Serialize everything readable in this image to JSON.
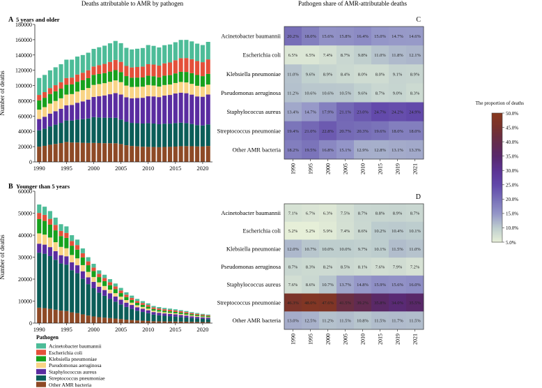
{
  "figure": {
    "left_title": "Deaths attributable to AMR by pathogen",
    "right_title": "Pathogen share of AMR-attributable deaths"
  },
  "legend": {
    "title": "Pathogen",
    "items": [
      {
        "label": "Acinetobacter baumannii",
        "color": "#4dbc98"
      },
      {
        "label": "Escherichia coli",
        "color": "#e4503a"
      },
      {
        "label": "Klebsiella pneumoniae",
        "color": "#16a11d"
      },
      {
        "label": "Pseudomonas aeruginosa",
        "color": "#f9d485"
      },
      {
        "label": "Staphylococcus aureus",
        "color": "#5a2ca0"
      },
      {
        "label": "Streptococcus pneumoniae",
        "color": "#0b5d58"
      },
      {
        "label": "Other AMR bacteria",
        "color": "#8e4a26"
      }
    ]
  },
  "colorbar": {
    "title": "The proportion of deaths",
    "ticks": [
      "5.0%",
      "10.0%",
      "15.0%",
      "20.0%",
      "25.0%",
      "30.0%",
      "35.0%",
      "40.0%",
      "45.0%",
      "50.0%"
    ],
    "min": 5,
    "max": 50
  },
  "chart_data": [
    {
      "id": "A",
      "panel_label": "A",
      "panel_title": "5 years and older",
      "type": "bar",
      "stacked": true,
      "ylabel": "Number of deaths",
      "ylim": [
        0,
        180000
      ],
      "yticks": [
        "0",
        "20000",
        "40000",
        "60000",
        "80000",
        "100000",
        "120000",
        "140000",
        "160000",
        "180000"
      ],
      "xticks": [
        "1990",
        "1995",
        "2000",
        "2005",
        "2010",
        "2015",
        "2020"
      ],
      "categories": [
        1990,
        1991,
        1992,
        1993,
        1994,
        1995,
        1996,
        1997,
        1998,
        1999,
        2000,
        2001,
        2002,
        2003,
        2004,
        2005,
        2006,
        2007,
        2008,
        2009,
        2010,
        2011,
        2012,
        2013,
        2014,
        2015,
        2016,
        2017,
        2018,
        2019,
        2020,
        2021
      ],
      "totals": [
        110000,
        114000,
        120000,
        124000,
        128000,
        134000,
        134000,
        138000,
        140000,
        143000,
        148000,
        150000,
        152000,
        155000,
        158000,
        155000,
        149000,
        147000,
        148000,
        149000,
        153000,
        152000,
        150000,
        153000,
        154000,
        157000,
        160000,
        160000,
        158000,
        155000,
        153000,
        157000
      ],
      "shares_by_year": {
        "years": [
          1990,
          1995,
          2000,
          2005,
          2010,
          2015,
          2019,
          2021
        ],
        "Acinetobacter baumannii": [
          20.2,
          18.0,
          15.6,
          15.8,
          16.4,
          15.0,
          14.7,
          14.6
        ],
        "Escherichia coli": [
          6.5,
          6.5,
          7.4,
          8.7,
          9.8,
          11.0,
          11.8,
          12.1
        ],
        "Klebsiella pneumoniae": [
          11.0,
          9.6,
          8.9,
          8.4,
          8.0,
          8.0,
          9.1,
          8.9
        ],
        "Pseudomonas aeruginosa": [
          11.2,
          10.6,
          10.6,
          10.5,
          9.6,
          8.7,
          9.0,
          8.3
        ],
        "Staphylococcus aureus": [
          13.4,
          14.7,
          17.9,
          21.1,
          23.0,
          24.7,
          24.2,
          24.9
        ],
        "Streptococcus pneumoniae": [
          19.4,
          21.0,
          22.8,
          20.7,
          20.3,
          19.6,
          18.0,
          18.0
        ],
        "Other AMR bacteria": [
          18.2,
          19.5,
          16.8,
          15.1,
          12.9,
          12.8,
          13.1,
          13.3
        ]
      }
    },
    {
      "id": "B",
      "panel_label": "B",
      "panel_title": "Younger than 5 years",
      "type": "bar",
      "stacked": true,
      "ylabel": "Number of deaths",
      "ylim": [
        0,
        60000
      ],
      "yticks": [
        "0",
        "10000",
        "20000",
        "30000",
        "40000",
        "50000",
        "60000"
      ],
      "xticks": [
        "1990",
        "1995",
        "2000",
        "2005",
        "2010",
        "2015",
        "2020"
      ],
      "categories": [
        1990,
        1991,
        1992,
        1993,
        1994,
        1995,
        1996,
        1997,
        1998,
        1999,
        2000,
        2001,
        2002,
        2003,
        2004,
        2005,
        2006,
        2007,
        2008,
        2009,
        2010,
        2011,
        2012,
        2013,
        2014,
        2015,
        2016,
        2017,
        2018,
        2019,
        2020,
        2021
      ],
      "totals": [
        54000,
        53000,
        51000,
        48000,
        45000,
        44000,
        40000,
        38000,
        34000,
        30000,
        27000,
        24000,
        22000,
        20000,
        18000,
        16000,
        14000,
        12500,
        11000,
        10000,
        9000,
        7800,
        7300,
        6900,
        6600,
        6300,
        5900,
        5500,
        5000,
        4600,
        4200,
        3900
      ],
      "shares_by_year": {
        "years": [
          1990,
          1995,
          2000,
          2005,
          2010,
          2015,
          2019,
          2021
        ],
        "Acinetobacter baumannii": [
          7.1,
          6.7,
          6.3,
          7.5,
          8.7,
          8.8,
          8.9,
          8.7
        ],
        "Escherichia coli": [
          5.2,
          5.2,
          5.9,
          7.4,
          8.6,
          10.2,
          10.4,
          10.1
        ],
        "Klebsiella pneumoniae": [
          12.0,
          10.7,
          10.0,
          10.0,
          9.7,
          10.1,
          11.5,
          11.0
        ],
        "Pseudomonas aeruginosa": [
          8.7,
          8.3,
          8.2,
          8.5,
          8.1,
          7.6,
          7.9,
          7.2
        ],
        "Staphylococcus aureus": [
          7.6,
          8.6,
          10.7,
          13.7,
          14.8,
          15.9,
          15.6,
          16.0
        ],
        "Streptococcus pneumoniae": [
          46.3,
          48.0,
          47.6,
          41.5,
          39.2,
          35.8,
          34.0,
          35.5
        ],
        "Other AMR bacteria": [
          13.0,
          12.5,
          11.2,
          11.5,
          10.8,
          11.5,
          11.7,
          11.5
        ]
      }
    },
    {
      "id": "C",
      "panel_label": "C",
      "type": "heatmap",
      "columns": [
        "1990",
        "1995",
        "2000",
        "2005",
        "2010",
        "2015",
        "2019",
        "2021"
      ],
      "rows": [
        {
          "label": "Acinetobacter baumannii",
          "cells": [
            "20.2%",
            "18.0%",
            "15.6%",
            "15.8%",
            "16.4%",
            "15.0%",
            "14.7%",
            "14.6%"
          ],
          "values": [
            20.2,
            18.0,
            15.6,
            15.8,
            16.4,
            15.0,
            14.7,
            14.6
          ]
        },
        {
          "label": "Escherichia coli",
          "cells": [
            "6.5%",
            "6.5%",
            "7.4%",
            "8.7%",
            "9.8%",
            "11.0%",
            "11.8%",
            "12.1%"
          ],
          "values": [
            6.5,
            6.5,
            7.4,
            8.7,
            9.8,
            11.0,
            11.8,
            12.1
          ]
        },
        {
          "label": "Klebsiella pneumoniae",
          "cells": [
            "11.0%",
            "9.6%",
            "8.9%",
            "8.4%",
            "8.0%",
            "8.0%",
            "9.1%",
            "8.9%"
          ],
          "values": [
            11.0,
            9.6,
            8.9,
            8.4,
            8.0,
            8.0,
            9.1,
            8.9
          ]
        },
        {
          "label": "Pseudomonas aeruginosa",
          "cells": [
            "11.2%",
            "10.6%",
            "10.6%",
            "10.5%",
            "9.6%",
            "8.7%",
            "9.0%",
            "8.3%"
          ],
          "values": [
            11.2,
            10.6,
            10.6,
            10.5,
            9.6,
            8.7,
            9.0,
            8.3
          ]
        },
        {
          "label": "Staphylococcus aureus",
          "cells": [
            "13.4%",
            "14.7%",
            "17.9%",
            "21.1%",
            "23.0%",
            "24.7%",
            "24.2%",
            "24.9%"
          ],
          "values": [
            13.4,
            14.7,
            17.9,
            21.1,
            23.0,
            24.7,
            24.2,
            24.9
          ]
        },
        {
          "label": "Streptococcus pneumoniae",
          "cells": [
            "19.4%",
            "21.0%",
            "22.8%",
            "20.7%",
            "20.3%",
            "19.6%",
            "18.0%",
            "18.0%"
          ],
          "values": [
            19.4,
            21.0,
            22.8,
            20.7,
            20.3,
            19.6,
            18.0,
            18.0
          ]
        },
        {
          "label": "Other AMR bacteria",
          "cells": [
            "18.2%",
            "19.5%",
            "16.8%",
            "15.1%",
            "12.9%",
            "12.8%",
            "13.1%",
            "13.3%"
          ],
          "values": [
            18.2,
            19.5,
            16.8,
            15.1,
            12.9,
            12.8,
            13.1,
            13.3
          ]
        }
      ]
    },
    {
      "id": "D",
      "panel_label": "D",
      "type": "heatmap",
      "columns": [
        "1990",
        "1995",
        "2000",
        "2005",
        "2010",
        "2015",
        "2019",
        "2021"
      ],
      "rows": [
        {
          "label": "Acinetobacter baumannii",
          "cells": [
            "7.1%",
            "6.7%",
            "6.3%",
            "7.5%",
            "8.7%",
            "8.8%",
            "8.9%",
            "8.7%"
          ],
          "values": [
            7.1,
            6.7,
            6.3,
            7.5,
            8.7,
            8.8,
            8.9,
            8.7
          ]
        },
        {
          "label": "Escherichia coli",
          "cells": [
            "5.2%",
            "5.2%",
            "5.9%",
            "7.4%",
            "8.6%",
            "10.2%",
            "10.4%",
            "10.1%"
          ],
          "values": [
            5.2,
            5.2,
            5.9,
            7.4,
            8.6,
            10.2,
            10.4,
            10.1
          ]
        },
        {
          "label": "Klebsiella pneumoniae",
          "cells": [
            "12.0%",
            "10.7%",
            "10.0%",
            "10.0%",
            "9.7%",
            "10.1%",
            "11.5%",
            "11.0%"
          ],
          "values": [
            12.0,
            10.7,
            10.0,
            10.0,
            9.7,
            10.1,
            11.5,
            11.0
          ]
        },
        {
          "label": "Pseudomonas aeruginosa",
          "cells": [
            "8.7%",
            "8.3%",
            "8.2%",
            "8.5%",
            "8.1%",
            "7.6%",
            "7.9%",
            "7.2%"
          ],
          "values": [
            8.7,
            8.3,
            8.2,
            8.5,
            8.1,
            7.6,
            7.9,
            7.2
          ]
        },
        {
          "label": "Staphylococcus aureus",
          "cells": [
            "7.6%",
            "8.6%",
            "10.7%",
            "13.7%",
            "14.8%",
            "15.9%",
            "15.6%",
            "16.0%"
          ],
          "values": [
            7.6,
            8.6,
            10.7,
            13.7,
            14.8,
            15.9,
            15.6,
            16.0
          ]
        },
        {
          "label": "Streptococcus pneumoniae",
          "cells": [
            "46.3%",
            "48.0%",
            "47.6%",
            "41.5%",
            "39.2%",
            "35.8%",
            "34.0%",
            "35.5%"
          ],
          "values": [
            46.3,
            48.0,
            47.6,
            41.5,
            39.2,
            35.8,
            34.0,
            35.5
          ]
        },
        {
          "label": "Other AMR bacteria",
          "cells": [
            "13.0%",
            "12.5%",
            "11.2%",
            "11.5%",
            "10.8%",
            "11.5%",
            "11.7%",
            "11.5%"
          ],
          "values": [
            13.0,
            12.5,
            11.2,
            11.5,
            10.8,
            11.5,
            11.7,
            11.5
          ]
        }
      ]
    }
  ]
}
